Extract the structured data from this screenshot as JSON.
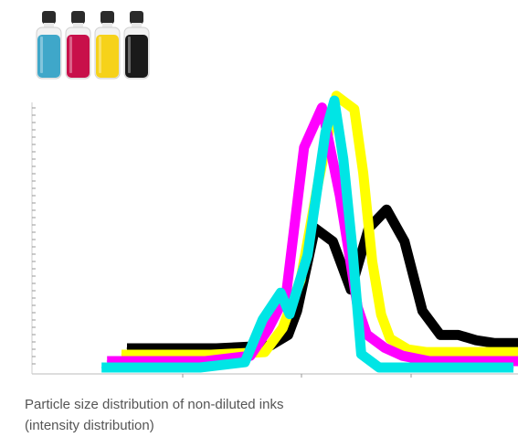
{
  "caption": {
    "line1": "Particle size distribution of non-diluted inks",
    "line2": "(intensity distribution)"
  },
  "bottles": [
    {
      "name": "cyan-ink-bottle",
      "color": "#3fa7c9"
    },
    {
      "name": "magenta-ink-bottle",
      "color": "#c8104a"
    },
    {
      "name": "yellow-ink-bottle",
      "color": "#f6d21a"
    },
    {
      "name": "black-ink-bottle",
      "color": "#1a1a1a"
    }
  ],
  "chart_data": {
    "type": "line",
    "xlim": [
      0,
      100
    ],
    "ylim": [
      0,
      100
    ],
    "grid": false,
    "legend": "none",
    "style": "thick offset ribbons",
    "series": [
      {
        "color": "#000000",
        "offset": 0,
        "x": [
          10,
          30,
          42,
          46,
          48,
          52,
          56,
          60,
          64,
          68,
          72,
          76,
          80,
          84,
          88,
          92,
          96,
          100
        ],
        "y": [
          0,
          0,
          1,
          5,
          14,
          45,
          40,
          22,
          45,
          52,
          40,
          14,
          5,
          5,
          3,
          2,
          2,
          2
        ]
      },
      {
        "color": "#ffff00",
        "offset": 1,
        "x": [
          10,
          30,
          42,
          46,
          50,
          54,
          58,
          62,
          64,
          66,
          68,
          70,
          74,
          78,
          84,
          90,
          100
        ],
        "y": [
          0,
          0,
          1,
          10,
          28,
          65,
          97,
          92,
          68,
          35,
          15,
          6,
          2,
          1,
          1,
          1,
          1
        ]
      },
      {
        "color": "#ff00ff",
        "offset": 2,
        "x": [
          8,
          30,
          40,
          44,
          48,
          52,
          56,
          60,
          64,
          66,
          70,
          74,
          80,
          90,
          100
        ],
        "y": [
          0,
          0,
          2,
          12,
          25,
          80,
          95,
          62,
          20,
          10,
          5,
          2,
          0,
          0,
          0
        ]
      },
      {
        "color": "#00e5e5",
        "offset": 3,
        "x": [
          8,
          30,
          40,
          44,
          48,
          50,
          54,
          58,
          60,
          62,
          64,
          66,
          70,
          80,
          90,
          100
        ],
        "y": [
          0,
          0,
          2,
          18,
          28,
          20,
          42,
          88,
          100,
          78,
          45,
          5,
          0,
          0,
          0,
          0
        ]
      }
    ]
  }
}
